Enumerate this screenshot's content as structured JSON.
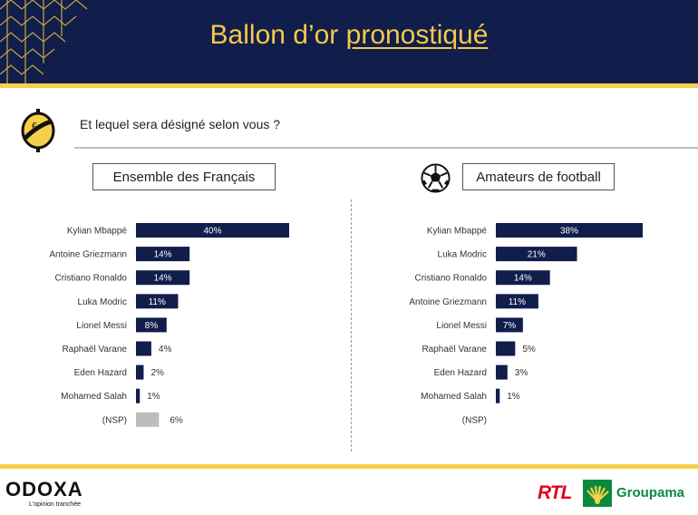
{
  "header": {
    "title_main": "Ballon d’or ",
    "title_underlined": "pronostiqué"
  },
  "question": "Et lequel sera désigné selon vous ?",
  "colors": {
    "navy": "#111d4a",
    "gold": "#f5d04a",
    "nsp_gray": "#bdbdbd"
  },
  "icons": {
    "question": "coin-icon",
    "football": "football-icon"
  },
  "chart_data": [
    {
      "type": "bar",
      "title": "Ensemble des Français",
      "orientation": "horizontal",
      "unit": "%",
      "xlim": [
        0,
        40
      ],
      "categories": [
        "Kylian Mbappé",
        "Antoine Griezmann",
        "Cristiano Ronaldo",
        "Luka Modric",
        "Lionel Messi",
        "Raphaël Varane",
        "Eden Hazard",
        "Mohamed Salah",
        "(NSP)"
      ],
      "values": [
        40,
        14,
        14,
        11,
        8,
        4,
        2,
        1,
        6
      ],
      "labels": [
        "40%",
        "14%",
        "14%",
        "11%",
        "8%",
        "4%",
        "2%",
        "1%",
        "6%"
      ]
    },
    {
      "type": "bar",
      "title": "Amateurs de football",
      "orientation": "horizontal",
      "unit": "%",
      "xlim": [
        0,
        38
      ],
      "categories": [
        "Kylian Mbappé",
        "Luka Modric",
        "Cristiano Ronaldo",
        "Antoine Griezmann",
        "Lionel Messi",
        "Raphaël Varane",
        "Eden Hazard",
        "Mohamed Salah",
        "(NSP)"
      ],
      "values": [
        38,
        21,
        14,
        11,
        7,
        5,
        3,
        1,
        0
      ],
      "labels": [
        "38%",
        "21%",
        "14%",
        "11%",
        "7%",
        "5%",
        "3%",
        "1%",
        ""
      ]
    }
  ],
  "footer": {
    "brand": "ODOXA",
    "tagline": "L'opinion tranchée",
    "partner1": "RTL",
    "partner2": "Groupama"
  }
}
